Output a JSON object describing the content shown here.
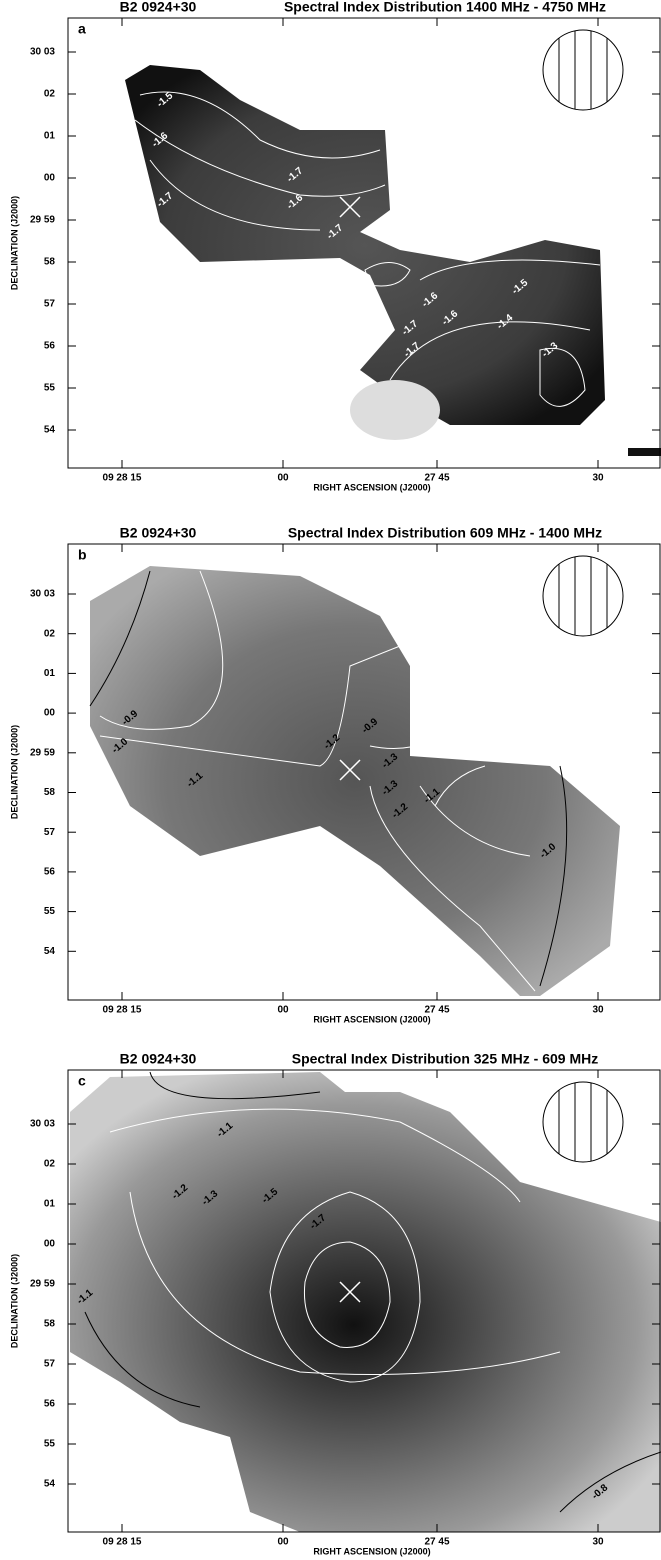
{
  "panels": [
    {
      "title": "B2 0924+30",
      "subtitle": "Spectral Index Distribution 1400 MHz - 4750 MHz",
      "label": "a",
      "y_axis_label": "DECLINATION (J2000)",
      "x_axis_label": "RIGHT ASCENSION (J2000)",
      "yticks": [
        "30 03",
        "02",
        "01",
        "00",
        "29 59",
        "58",
        "57",
        "56",
        "55",
        "54"
      ],
      "xticks": [
        "09 28 15",
        "00",
        "27 45",
        "30"
      ],
      "contour_labels": [
        "-1.5",
        "-1.6",
        "-1.7",
        "-1.7",
        "-1.6",
        "-1.7",
        "-1.6",
        "-1.6",
        "-1.7",
        "-1.5",
        "-1.4",
        "-1.7",
        "-1.3"
      ]
    },
    {
      "title": "B2 0924+30",
      "subtitle": "Spectral Index Distribution 609 MHz - 1400 MHz",
      "label": "b",
      "y_axis_label": "DECLINATION (J2000)",
      "x_axis_label": "RIGHT ASCENSION (J2000)",
      "yticks": [
        "30 03",
        "02",
        "01",
        "00",
        "29 59",
        "58",
        "57",
        "56",
        "55",
        "54"
      ],
      "xticks": [
        "09 28 15",
        "00",
        "27 45",
        "30"
      ],
      "contour_labels": [
        "-0.9",
        "-1.0",
        "-1.1",
        "-1.2",
        "-1.3",
        "-1.3",
        "-1.2",
        "-1.1",
        "-1.0",
        "-0.9"
      ]
    },
    {
      "title": "B2 0924+30",
      "subtitle": "Spectral Index Distribution 325 MHz - 609 MHz",
      "label": "c",
      "y_axis_label": "DECLINATION (J2000)",
      "x_axis_label": "RIGHT ASCENSION (J2000)",
      "yticks": [
        "30 03",
        "02",
        "01",
        "00",
        "29 59",
        "58",
        "57",
        "56",
        "55",
        "54"
      ],
      "xticks": [
        "09 28 15",
        "00",
        "27 45",
        "30"
      ],
      "contour_labels": [
        "-1.1",
        "-1.2",
        "-1.3",
        "-1.5",
        "-1.7",
        "-1.1",
        "-0.8"
      ]
    }
  ]
}
